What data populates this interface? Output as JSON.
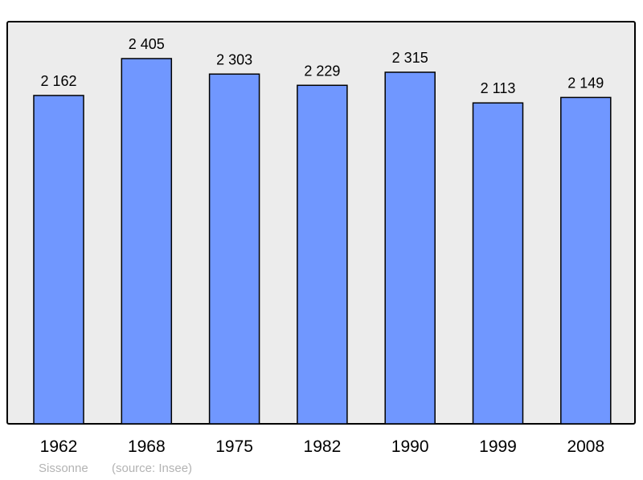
{
  "chart_data": {
    "type": "bar",
    "title": "",
    "xlabel": "",
    "ylabel": "",
    "categories": [
      "1962",
      "1968",
      "1975",
      "1982",
      "1990",
      "1999",
      "2008"
    ],
    "values": [
      2162,
      2405,
      2303,
      2229,
      2315,
      2113,
      2149
    ],
    "value_labels": [
      "2 162",
      "2 405",
      "2 303",
      "2 229",
      "2 315",
      "2 113",
      "2 149"
    ],
    "ylim": [
      0,
      2648
    ],
    "grid": false,
    "bar_color": "#7097ff",
    "background_color": "#ececec"
  },
  "footer": {
    "place": "Sissonne",
    "source": "(source: Insee)"
  }
}
